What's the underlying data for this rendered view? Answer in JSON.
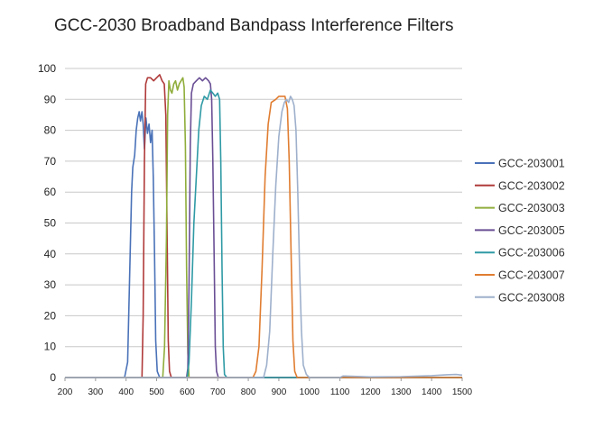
{
  "chart_data": {
    "type": "line",
    "title": "GCC-2030 Broadband Bandpass Interference Filters",
    "xlabel": "",
    "ylabel": "",
    "xlim": [
      200,
      1500
    ],
    "ylim": [
      0,
      100
    ],
    "x_ticks": [
      200,
      300,
      400,
      500,
      600,
      700,
      800,
      900,
      1000,
      1100,
      1200,
      1300,
      1400,
      1500
    ],
    "y_ticks": [
      0,
      10,
      20,
      30,
      40,
      50,
      60,
      70,
      80,
      90,
      100
    ],
    "grid": "horizontal",
    "legend_position": "right",
    "series": [
      {
        "name": "GCC-203001",
        "color": "#4a72b8",
        "points": [
          [
            200,
            0
          ],
          [
            395,
            0
          ],
          [
            405,
            5
          ],
          [
            412,
            35
          ],
          [
            418,
            60
          ],
          [
            422,
            68
          ],
          [
            428,
            72
          ],
          [
            433,
            80
          ],
          [
            438,
            84
          ],
          [
            443,
            86
          ],
          [
            447,
            83
          ],
          [
            452,
            86
          ],
          [
            456,
            82
          ],
          [
            460,
            74
          ],
          [
            465,
            84
          ],
          [
            470,
            79
          ],
          [
            475,
            82
          ],
          [
            480,
            76
          ],
          [
            485,
            80
          ],
          [
            489,
            65
          ],
          [
            493,
            40
          ],
          [
            497,
            12
          ],
          [
            502,
            2
          ],
          [
            510,
            0
          ],
          [
            1500,
            0
          ]
        ]
      },
      {
        "name": "GCC-203002",
        "color": "#b03a3a",
        "points": [
          [
            200,
            0
          ],
          [
            452,
            0
          ],
          [
            456,
            20
          ],
          [
            460,
            70
          ],
          [
            464,
            95
          ],
          [
            470,
            97
          ],
          [
            480,
            97
          ],
          [
            490,
            96
          ],
          [
            500,
            97
          ],
          [
            510,
            98
          ],
          [
            518,
            96
          ],
          [
            525,
            95
          ],
          [
            530,
            85
          ],
          [
            534,
            50
          ],
          [
            538,
            12
          ],
          [
            542,
            2
          ],
          [
            548,
            0
          ],
          [
            1500,
            0
          ]
        ]
      },
      {
        "name": "GCC-203003",
        "color": "#8fad3b",
        "points": [
          [
            200,
            0
          ],
          [
            520,
            0
          ],
          [
            526,
            10
          ],
          [
            532,
            45
          ],
          [
            536,
            85
          ],
          [
            540,
            96
          ],
          [
            545,
            93
          ],
          [
            550,
            92
          ],
          [
            556,
            95
          ],
          [
            562,
            96
          ],
          [
            568,
            93
          ],
          [
            574,
            95
          ],
          [
            580,
            96
          ],
          [
            586,
            97
          ],
          [
            590,
            94
          ],
          [
            594,
            75
          ],
          [
            598,
            35
          ],
          [
            602,
            8
          ],
          [
            606,
            0
          ],
          [
            1500,
            0
          ]
        ]
      },
      {
        "name": "GCC-203005",
        "color": "#6a4f95",
        "points": [
          [
            200,
            0
          ],
          [
            598,
            0
          ],
          [
            602,
            3
          ],
          [
            606,
            30
          ],
          [
            610,
            75
          ],
          [
            614,
            92
          ],
          [
            620,
            95
          ],
          [
            630,
            96
          ],
          [
            640,
            97
          ],
          [
            650,
            96
          ],
          [
            660,
            97
          ],
          [
            670,
            96
          ],
          [
            676,
            95
          ],
          [
            680,
            90
          ],
          [
            684,
            70
          ],
          [
            688,
            40
          ],
          [
            692,
            10
          ],
          [
            696,
            2
          ],
          [
            702,
            0
          ],
          [
            1500,
            0
          ]
        ]
      },
      {
        "name": "GCC-203006",
        "color": "#2f9aa5",
        "points": [
          [
            200,
            0
          ],
          [
            600,
            0
          ],
          [
            606,
            5
          ],
          [
            614,
            25
          ],
          [
            622,
            50
          ],
          [
            630,
            65
          ],
          [
            638,
            80
          ],
          [
            646,
            88
          ],
          [
            656,
            91
          ],
          [
            666,
            90
          ],
          [
            676,
            93
          ],
          [
            684,
            92
          ],
          [
            692,
            91
          ],
          [
            700,
            92
          ],
          [
            706,
            90
          ],
          [
            710,
            70
          ],
          [
            714,
            35
          ],
          [
            718,
            10
          ],
          [
            722,
            1
          ],
          [
            730,
            0
          ],
          [
            1500,
            0
          ]
        ]
      },
      {
        "name": "GCC-203007",
        "color": "#e07d31",
        "points": [
          [
            200,
            0
          ],
          [
            815,
            0
          ],
          [
            825,
            2
          ],
          [
            835,
            10
          ],
          [
            845,
            35
          ],
          [
            855,
            65
          ],
          [
            865,
            82
          ],
          [
            875,
            89
          ],
          [
            890,
            90
          ],
          [
            900,
            91
          ],
          [
            910,
            91
          ],
          [
            920,
            91
          ],
          [
            928,
            87
          ],
          [
            934,
            70
          ],
          [
            940,
            40
          ],
          [
            946,
            12
          ],
          [
            952,
            2
          ],
          [
            960,
            0
          ],
          [
            1500,
            0
          ]
        ]
      },
      {
        "name": "GCC-203008",
        "color": "#9eb0cc",
        "points": [
          [
            200,
            0
          ],
          [
            850,
            0
          ],
          [
            860,
            4
          ],
          [
            870,
            15
          ],
          [
            880,
            40
          ],
          [
            890,
            62
          ],
          [
            900,
            78
          ],
          [
            910,
            86
          ],
          [
            918,
            89
          ],
          [
            925,
            90
          ],
          [
            932,
            89
          ],
          [
            938,
            91
          ],
          [
            944,
            90
          ],
          [
            950,
            88
          ],
          [
            956,
            80
          ],
          [
            962,
            60
          ],
          [
            968,
            35
          ],
          [
            974,
            15
          ],
          [
            980,
            4
          ],
          [
            990,
            1
          ],
          [
            1000,
            0
          ],
          [
            1100,
            0
          ],
          [
            1110,
            0.5
          ],
          [
            1200,
            0.2
          ],
          [
            1300,
            0.3
          ],
          [
            1400,
            0.6
          ],
          [
            1450,
            0.9
          ],
          [
            1480,
            1.0
          ],
          [
            1500,
            0.8
          ]
        ]
      }
    ]
  }
}
